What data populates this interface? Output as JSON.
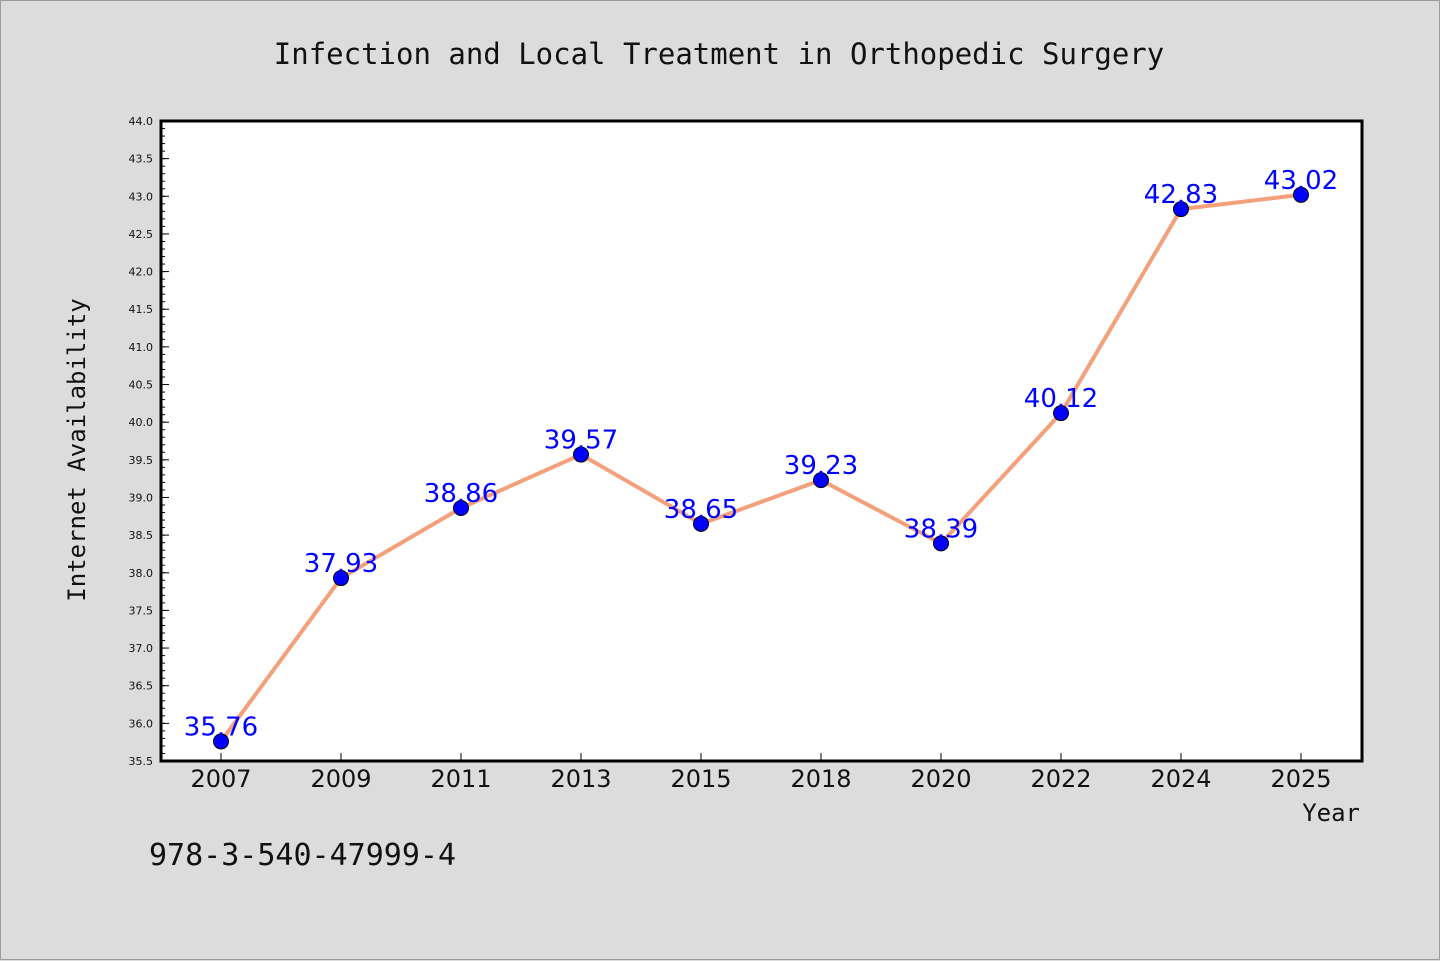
{
  "chart_data": {
    "type": "line",
    "title": "Infection and Local Treatment in Orthopedic Surgery",
    "xlabel": "Year",
    "ylabel": "Internet Availability",
    "categories": [
      "2007",
      "2009",
      "2011",
      "2013",
      "2015",
      "2018",
      "2020",
      "2022",
      "2024",
      "2025"
    ],
    "series": [
      {
        "values": [
          35.76,
          37.93,
          38.86,
          39.57,
          38.65,
          39.23,
          38.39,
          40.12,
          42.83,
          43.02
        ],
        "labels": [
          "35.76",
          "37.93",
          "38.86",
          "39.57",
          "38.65",
          "39.23",
          "38.39",
          "40.12",
          "42.83",
          "43.02"
        ],
        "line_color": "#f4a07a",
        "marker_color": "#0000ff",
        "label_color": "#0000ff"
      }
    ],
    "ylim": [
      35.5,
      44.0
    ],
    "yticks": [
      "35.5",
      "36.0",
      "36.5",
      "37.0",
      "37.5",
      "38.0",
      "38.5",
      "39.0",
      "39.5",
      "40.0",
      "40.5",
      "41.0",
      "41.5",
      "42.0",
      "42.5",
      "43.0",
      "43.5",
      "44.0"
    ],
    "grid": false,
    "legend": "none"
  },
  "annotation": "978-3-540-47999-4",
  "colors": {
    "background": "#dcdcdc",
    "plot_area": "#ffffff",
    "axis": "#000000"
  }
}
